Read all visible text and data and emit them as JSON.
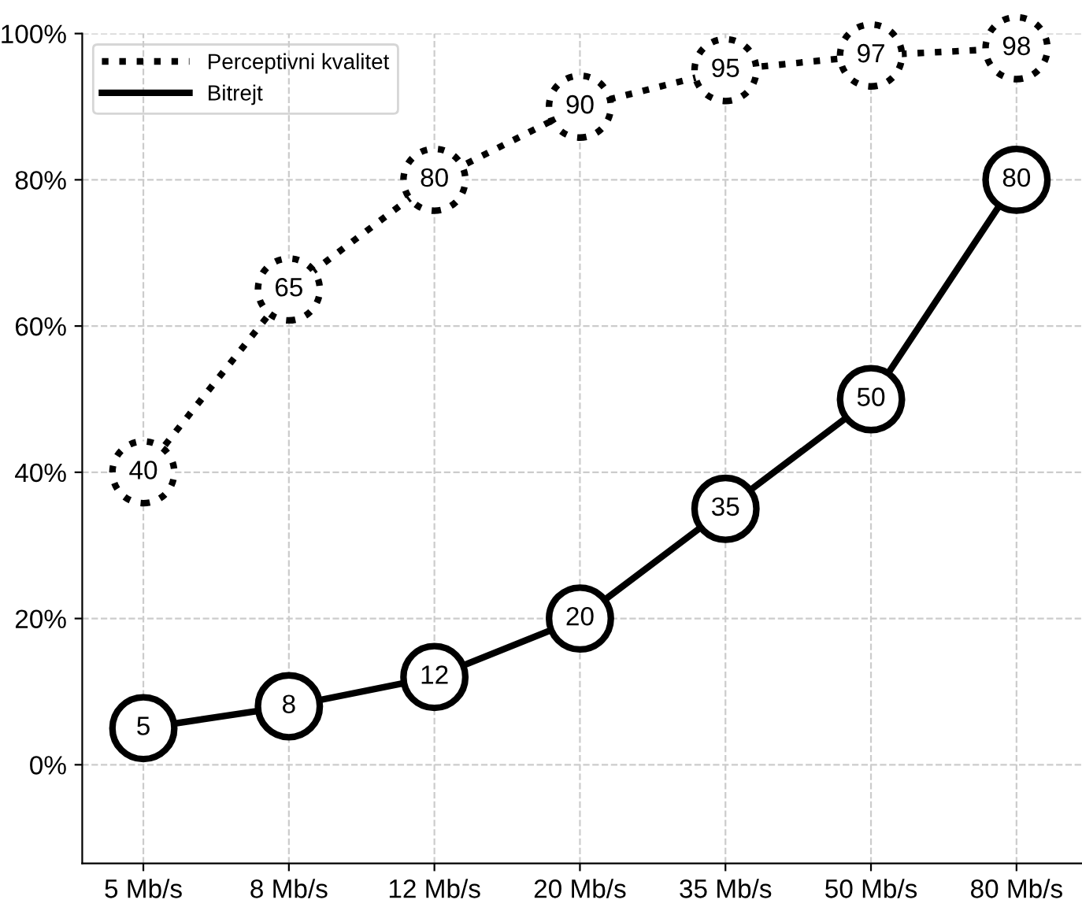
{
  "chart_data": {
    "type": "line",
    "categories": [
      "5 Mb/s",
      "8 Mb/s",
      "12 Mb/s",
      "20 Mb/s",
      "35 Mb/s",
      "50 Mb/s",
      "80 Mb/s"
    ],
    "series": [
      {
        "name": "Perceptivni kvalitet",
        "color": "#000000",
        "line_style": "dotted",
        "values": [
          40,
          65,
          80,
          90,
          95,
          97,
          98
        ]
      },
      {
        "name": "Bitrejt",
        "color": "#000000",
        "line_style": "solid",
        "values": [
          5,
          8,
          12,
          20,
          35,
          50,
          80
        ]
      }
    ],
    "ylim": [
      -13.5,
      100
    ],
    "yticks": [
      {
        "value": 0,
        "label": "0%"
      },
      {
        "value": 20,
        "label": "20%"
      },
      {
        "value": 40,
        "label": "40%"
      },
      {
        "value": 60,
        "label": "60%"
      },
      {
        "value": 80,
        "label": "80%"
      },
      {
        "value": 100,
        "label": "100%"
      }
    ],
    "grid": true,
    "legend": "top left",
    "marker": "circle",
    "data_labels": true
  }
}
